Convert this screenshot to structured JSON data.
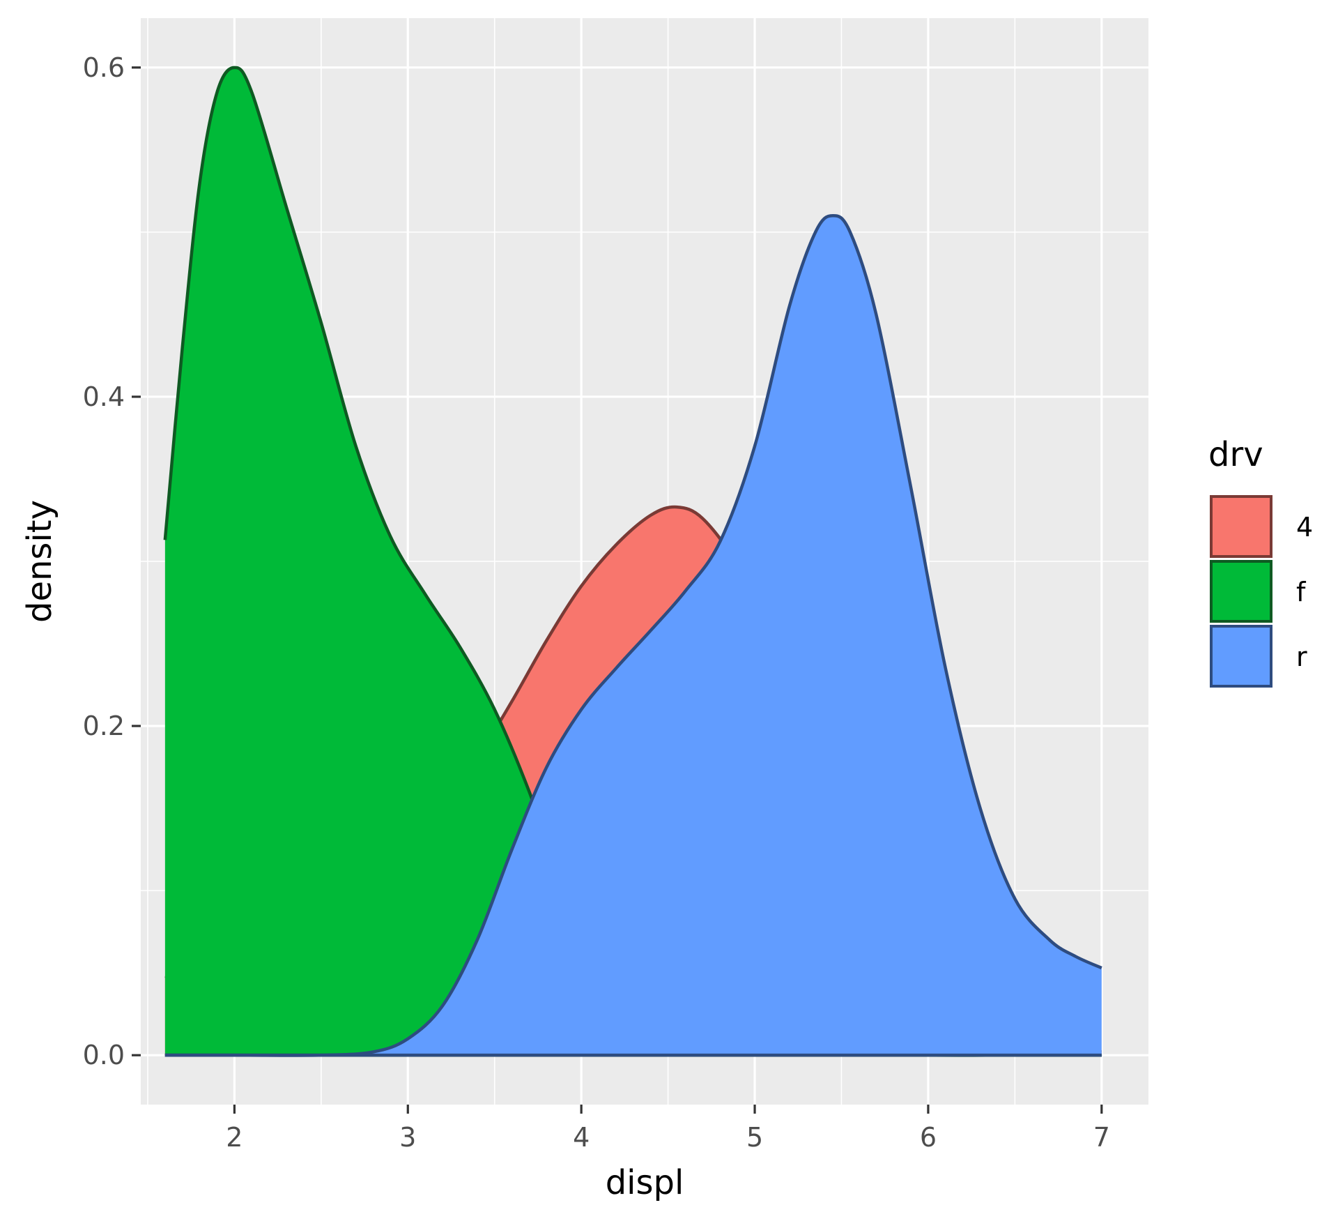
{
  "chart_data": {
    "type": "area",
    "title": "",
    "xlabel": "displ",
    "ylabel": "density",
    "xlim": [
      1.46,
      7.27
    ],
    "ylim": [
      -0.03,
      0.63
    ],
    "x_ticks": [
      2,
      3,
      4,
      5,
      6,
      7
    ],
    "y_ticks": [
      0.0,
      0.2,
      0.4,
      0.6
    ],
    "x_tick_labels": [
      "2",
      "3",
      "4",
      "5",
      "6",
      "7"
    ],
    "y_tick_labels": [
      "0.0",
      "0.2",
      "0.4",
      "0.6"
    ],
    "grid": true,
    "legend": {
      "title": "drv",
      "placement": "right"
    },
    "series": [
      {
        "name": "4",
        "fill": "#F8766D",
        "outline": "#7A3A35",
        "x": [
          1.6,
          1.8,
          2.0,
          2.2,
          2.4,
          2.6,
          2.8,
          3.0,
          3.2,
          3.4,
          3.6,
          3.8,
          4.0,
          4.2,
          4.4,
          4.55,
          4.7,
          4.9,
          5.1,
          5.3,
          5.5,
          5.7,
          5.9,
          6.1,
          6.3,
          6.5,
          6.7,
          7.0
        ],
        "values": [
          0.048,
          0.044,
          0.042,
          0.045,
          0.055,
          0.072,
          0.095,
          0.12,
          0.148,
          0.18,
          0.215,
          0.252,
          0.285,
          0.31,
          0.328,
          0.333,
          0.326,
          0.298,
          0.255,
          0.2,
          0.148,
          0.1,
          0.062,
          0.035,
          0.018,
          0.009,
          0.005,
          0.002
        ]
      },
      {
        "name": "f",
        "fill": "#00BA38",
        "outline": "#0E5A22",
        "x": [
          1.6,
          1.7,
          1.8,
          1.9,
          2.0,
          2.1,
          2.3,
          2.5,
          2.7,
          2.9,
          3.1,
          3.3,
          3.5,
          3.7,
          3.9,
          4.1,
          4.3,
          4.5,
          4.7,
          5.0,
          5.5,
          6.0,
          6.5,
          7.0
        ],
        "values": [
          0.313,
          0.43,
          0.53,
          0.585,
          0.6,
          0.585,
          0.515,
          0.445,
          0.37,
          0.315,
          0.28,
          0.248,
          0.21,
          0.16,
          0.1,
          0.05,
          0.02,
          0.006,
          0.002,
          0.001,
          0.001,
          0.0,
          0.0,
          0.0
        ]
      },
      {
        "name": "r",
        "fill": "#619CFF",
        "outline": "#2E4C80",
        "x": [
          1.6,
          2.0,
          2.5,
          2.8,
          3.0,
          3.2,
          3.4,
          3.6,
          3.8,
          4.0,
          4.2,
          4.4,
          4.6,
          4.8,
          5.0,
          5.2,
          5.35,
          5.45,
          5.55,
          5.7,
          5.9,
          6.1,
          6.3,
          6.5,
          6.7,
          6.85,
          7.0
        ],
        "values": [
          0.0,
          0.0,
          0.0,
          0.002,
          0.01,
          0.03,
          0.07,
          0.125,
          0.175,
          0.21,
          0.235,
          0.258,
          0.282,
          0.312,
          0.37,
          0.455,
          0.5,
          0.51,
          0.5,
          0.45,
          0.345,
          0.235,
          0.15,
          0.095,
          0.07,
          0.06,
          0.053
        ]
      }
    ]
  }
}
